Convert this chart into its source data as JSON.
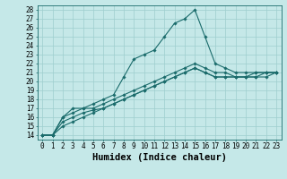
{
  "xlabel": "Humidex (Indice chaleur)",
  "bg_color": "#c5e8e8",
  "grid_color": "#9ecece",
  "line_color": "#1a6b6b",
  "xlim": [
    -0.5,
    23.5
  ],
  "ylim": [
    13.5,
    28.5
  ],
  "xticks": [
    0,
    1,
    2,
    3,
    4,
    5,
    6,
    7,
    8,
    9,
    10,
    11,
    12,
    13,
    14,
    15,
    16,
    17,
    18,
    19,
    20,
    21,
    22,
    23
  ],
  "yticks": [
    14,
    15,
    16,
    17,
    18,
    19,
    20,
    21,
    22,
    23,
    24,
    25,
    26,
    27,
    28
  ],
  "series": [
    [
      14,
      14,
      16,
      17,
      17,
      17.5,
      18,
      18.5,
      20.5,
      22.5,
      23,
      23.5,
      25,
      26.5,
      27,
      28,
      25,
      22,
      21.5,
      21,
      21,
      21,
      21,
      21
    ],
    [
      14,
      14,
      16,
      16.5,
      17,
      17,
      17.5,
      18,
      18.5,
      19,
      19.5,
      20,
      20.5,
      21,
      21.5,
      22,
      21.5,
      21,
      21,
      20.5,
      20.5,
      21,
      21,
      21
    ],
    [
      14,
      14,
      15.5,
      16,
      16.5,
      16.8,
      17,
      17.5,
      18,
      18.5,
      19,
      19.5,
      20,
      20.5,
      21,
      21.5,
      21,
      20.5,
      20.5,
      20.5,
      20.5,
      20.5,
      21,
      21
    ],
    [
      14,
      14,
      15,
      15.5,
      16,
      16.5,
      17,
      17.5,
      18,
      18.5,
      19,
      19.5,
      20,
      20.5,
      21,
      21.5,
      21,
      20.5,
      20.5,
      20.5,
      20.5,
      20.5,
      20.5,
      21
    ]
  ],
  "marker": "D",
  "marker_size": 1.8,
  "linewidth": 0.8,
  "tick_fontsize": 5.5,
  "xlabel_fontsize": 7.5
}
